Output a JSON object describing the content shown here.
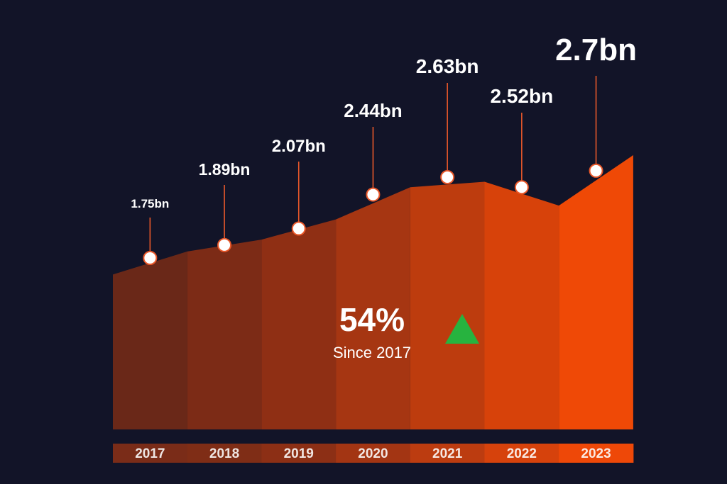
{
  "colors": {
    "background": "#121428",
    "bands": [
      "#6a2818",
      "#7c2b16",
      "#8f2f14",
      "#a63612",
      "#bd3c0e",
      "#d7420a",
      "#ef4906"
    ],
    "year_bar": [
      "#7a2c18",
      "#7f2d16",
      "#8c2f15",
      "#a33513",
      "#bc3c10",
      "#d6420c",
      "#ee4808"
    ],
    "highlight_label": "#ef4b12",
    "up_arrow": "#27b33f",
    "marker": "#ffffff"
  },
  "chart_data": {
    "type": "area",
    "categories": [
      "2017",
      "2018",
      "2019",
      "2020",
      "2021",
      "2022",
      "2023"
    ],
    "values": [
      1.75,
      1.89,
      2.07,
      2.44,
      2.63,
      2.52,
      2.7
    ],
    "data_labels": [
      "1.75bn",
      "1.89bn",
      "2.07bn",
      "2.44bn",
      "2.63bn",
      "2.52bn",
      "2.7bn"
    ],
    "highlight_index": 6,
    "title": "",
    "xlabel": "",
    "ylabel": "",
    "grid": false,
    "legend": "none",
    "annotation": {
      "percent": "54%",
      "caption": "Since 2017",
      "icon": "up-triangle-icon"
    }
  }
}
